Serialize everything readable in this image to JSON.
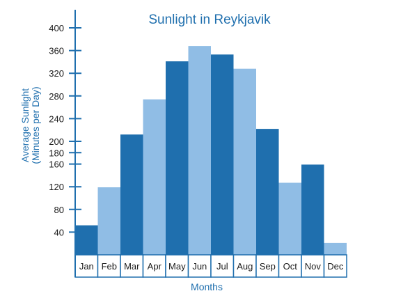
{
  "chart_data": {
    "type": "bar",
    "title": "Sunlight in Reykjavik",
    "xlabel": "Months",
    "ylabel_line1": "Average Sunlight",
    "ylabel_line2": "(Minutes per Day)",
    "categories": [
      "Jan",
      "Feb",
      "Mar",
      "Apr",
      "May",
      "Jun",
      "Jul",
      "Aug",
      "Sep",
      "Oct",
      "Nov",
      "Dec"
    ],
    "values": [
      52,
      119,
      212,
      274,
      341,
      368,
      353,
      328,
      222,
      127,
      159,
      21
    ],
    "ylim": [
      0,
      400
    ],
    "yticks": [
      40,
      80,
      120,
      160,
      180,
      200,
      240,
      280,
      320,
      360,
      400
    ],
    "colors": [
      "#1f6fae",
      "#90bde5"
    ],
    "grid": false
  }
}
